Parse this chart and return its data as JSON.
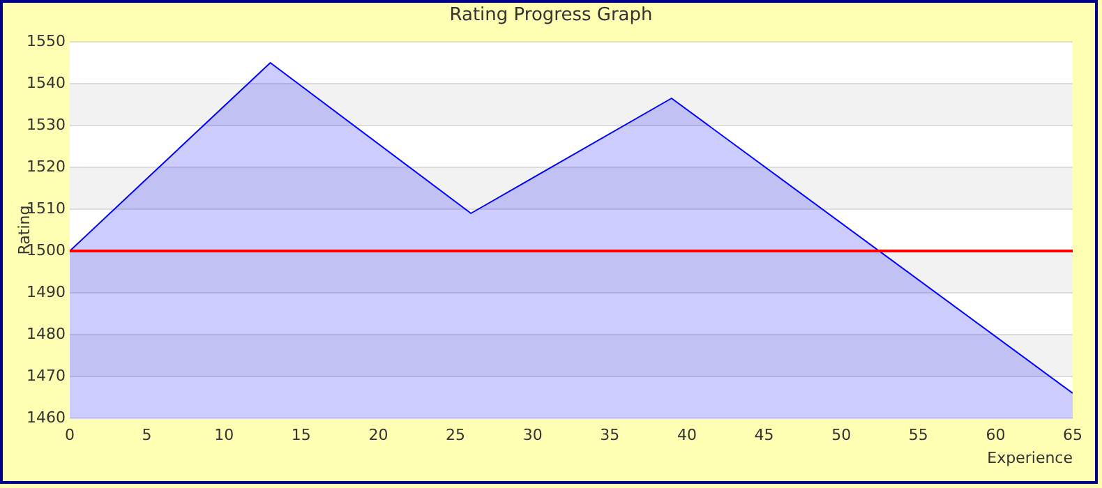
{
  "chart_data": {
    "type": "area",
    "title": "Rating Progress Graph",
    "xlabel": "Experience",
    "ylabel": "Rating",
    "x": [
      0,
      13,
      26,
      39,
      65
    ],
    "series": [
      {
        "color": "#0000ff",
        "values": [
          1500,
          1545,
          1509,
          1536.5,
          1466
        ]
      }
    ],
    "xlim": [
      0,
      65
    ],
    "xticks": [
      0,
      5,
      10,
      15,
      20,
      25,
      30,
      35,
      40,
      45,
      50,
      55,
      60,
      65
    ],
    "ylim": [
      1460,
      1550
    ],
    "yticks": [
      1460,
      1470,
      1480,
      1490,
      1500,
      1510,
      1520,
      1530,
      1540,
      1550
    ],
    "grid": "y",
    "marker": "none",
    "ref_lines": [
      {
        "axis": "y",
        "value": 1500,
        "color": "#ff0000"
      }
    ]
  }
}
